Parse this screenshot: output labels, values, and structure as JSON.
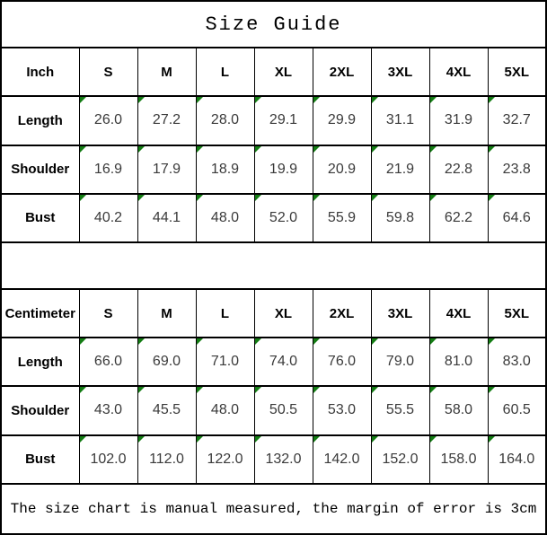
{
  "title": "Size Guide",
  "chart_data": {
    "type": "table",
    "title": "Size Guide",
    "footnote": "The size chart is manual measured, the margin of error is 3cm",
    "sections": [
      {
        "unit_label": "Inch",
        "columns": [
          "S",
          "M",
          "L",
          "XL",
          "2XL",
          "3XL",
          "4XL",
          "5XL"
        ],
        "rows": [
          {
            "label": "Length",
            "values": [
              "26.0",
              "27.2",
              "28.0",
              "29.1",
              "29.9",
              "31.1",
              "31.9",
              "32.7"
            ]
          },
          {
            "label": "Shoulder",
            "values": [
              "16.9",
              "17.9",
              "18.9",
              "19.9",
              "20.9",
              "21.9",
              "22.8",
              "23.8"
            ]
          },
          {
            "label": "Bust",
            "values": [
              "40.2",
              "44.1",
              "48.0",
              "52.0",
              "55.9",
              "59.8",
              "62.2",
              "64.6"
            ]
          }
        ]
      },
      {
        "unit_label": "Centimeter",
        "columns": [
          "S",
          "M",
          "L",
          "XL",
          "2XL",
          "3XL",
          "4XL",
          "5XL"
        ],
        "rows": [
          {
            "label": "Length",
            "values": [
              "66.0",
              "69.0",
              "71.0",
              "74.0",
              "76.0",
              "79.0",
              "81.0",
              "83.0"
            ]
          },
          {
            "label": "Shoulder",
            "values": [
              "43.0",
              "45.5",
              "48.0",
              "50.5",
              "53.0",
              "55.5",
              "58.0",
              "60.5"
            ]
          },
          {
            "label": "Bust",
            "values": [
              "102.0",
              "112.0",
              "122.0",
              "132.0",
              "142.0",
              "152.0",
              "158.0",
              "164.0"
            ]
          }
        ]
      }
    ]
  },
  "colors": {
    "border": "#000000",
    "flag_green": "#147d14",
    "value_text": "#3a3a3a",
    "background": "#ffffff"
  },
  "icons": {
    "flag_triangle": "excel-style green corner flag in top-left of each value cell"
  }
}
